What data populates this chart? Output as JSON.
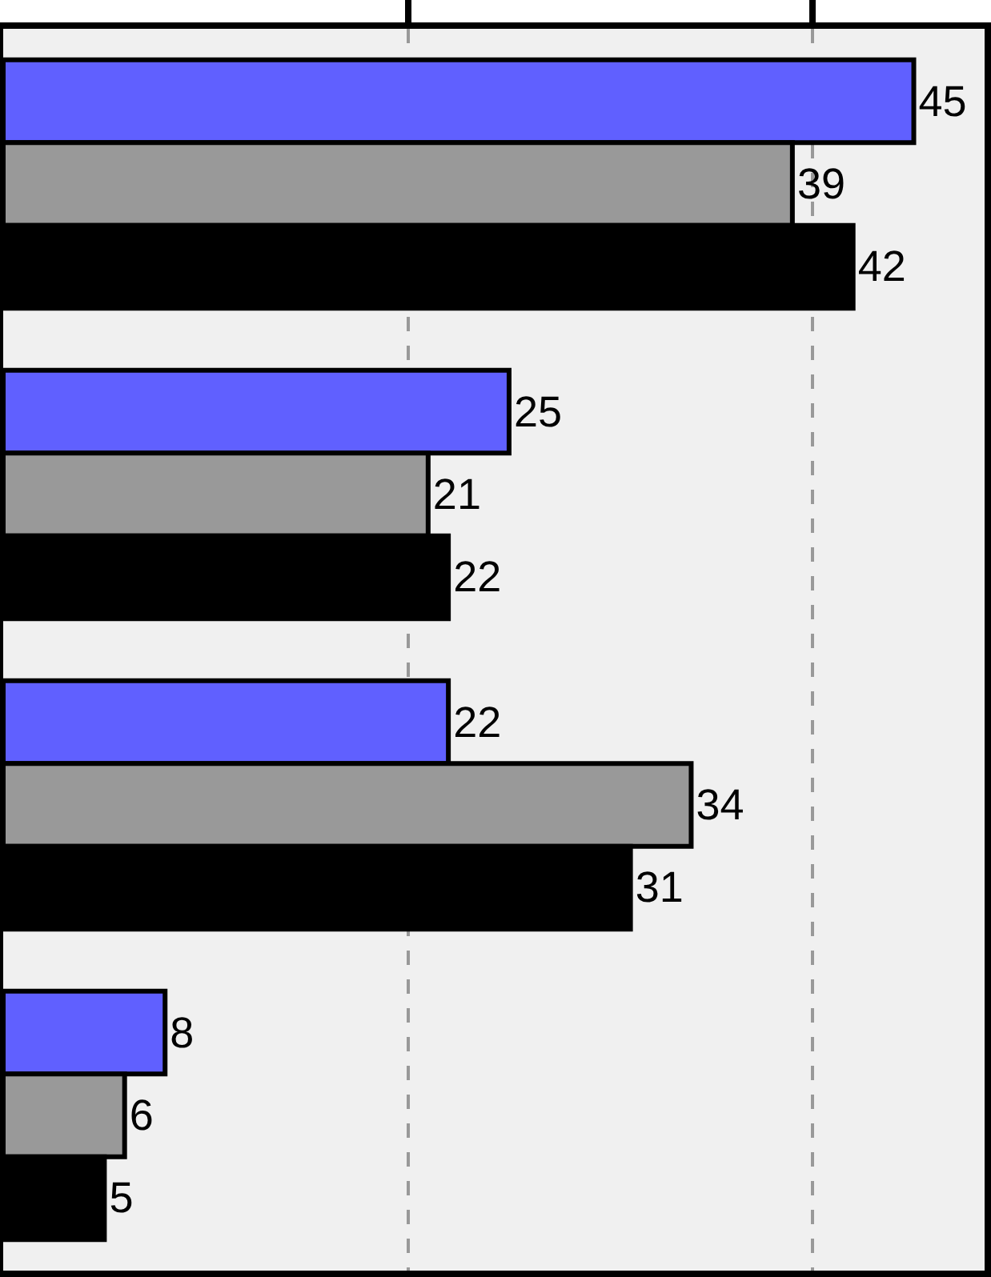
{
  "chart_data": {
    "type": "bar",
    "orientation": "horizontal",
    "categories": [
      null,
      null,
      null,
      null
    ],
    "series": [
      {
        "color": "#6060ff",
        "values": [
          45,
          25,
          22,
          8
        ]
      },
      {
        "color": "#999999",
        "values": [
          39,
          21,
          34,
          6
        ]
      },
      {
        "color": "#000000",
        "values": [
          42,
          22,
          31,
          5
        ]
      }
    ],
    "xlim": [
      0,
      48.5
    ],
    "xticks": [
      {
        "value": 20,
        "label": null
      },
      {
        "value": 40,
        "label": null
      }
    ],
    "grid": "x",
    "data_labels": true,
    "legend": false
  }
}
